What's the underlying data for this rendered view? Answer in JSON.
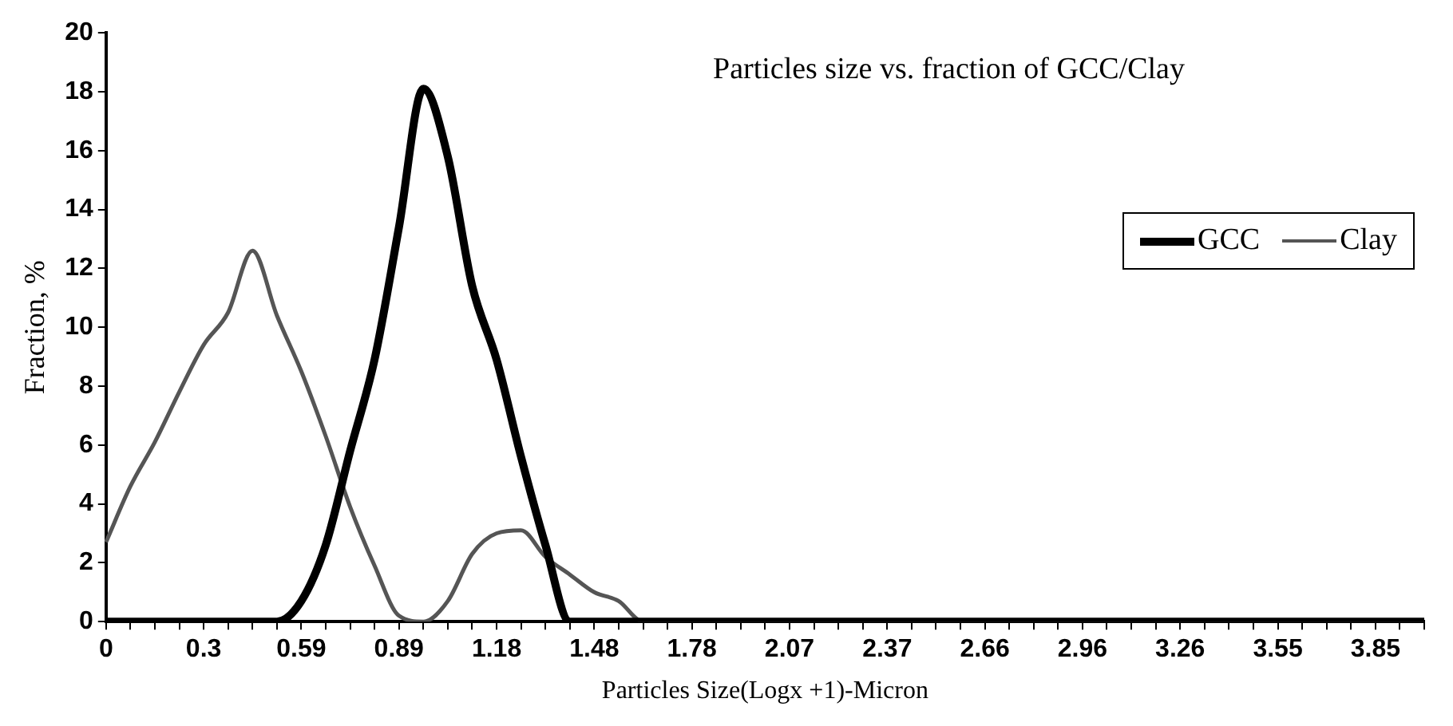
{
  "chart_data": {
    "type": "line",
    "title": "Particles size vs. fraction of GCC/Clay",
    "xlabel": "Particles Size(Logx +1)-Micron",
    "ylabel": "Fraction, %",
    "categories": [
      "0",
      null,
      null,
      null,
      "0.3",
      null,
      null,
      null,
      "0.59",
      null,
      null,
      null,
      "0.89",
      null,
      null,
      null,
      "1.18",
      null,
      null,
      null,
      "1.48",
      null,
      null,
      null,
      "1.78",
      null,
      null,
      null,
      "2.07",
      null,
      null,
      null,
      "2.37",
      null,
      null,
      null,
      "2.66",
      null,
      null,
      null,
      "2.96",
      null,
      null,
      null,
      "3.26",
      null,
      null,
      null,
      "3.55",
      null,
      null,
      null,
      "3.85",
      null,
      null
    ],
    "series": [
      {
        "name": "GCC",
        "color": "#000000",
        "values": [
          0,
          0,
          0,
          0,
          0,
          0,
          0,
          0,
          0.7,
          2.6,
          5.8,
          8.9,
          13.4,
          18.1,
          15.8,
          11.4,
          8.9,
          5.6,
          2.6,
          0,
          0,
          0,
          0,
          0,
          0,
          0,
          0,
          0,
          0,
          0,
          0,
          0,
          0,
          0,
          0,
          0,
          0,
          0,
          0,
          0,
          0,
          0,
          0,
          0,
          0,
          0,
          0,
          0,
          0,
          0,
          0,
          0,
          0,
          0,
          0
        ]
      },
      {
        "name": "Clay",
        "color": "#555555",
        "values": [
          2.7,
          4.6,
          6.1,
          7.8,
          9.4,
          10.5,
          12.6,
          10.4,
          8.5,
          6.3,
          3.9,
          1.9,
          0.2,
          0,
          0.7,
          2.3,
          3.0,
          3.1,
          2.2,
          1.6,
          1.0,
          0.7,
          0,
          0,
          0,
          0,
          0,
          0,
          0,
          0,
          0,
          0,
          0,
          0,
          0,
          0,
          0,
          0,
          0,
          0,
          0,
          0,
          0,
          0,
          0,
          0,
          0,
          0,
          0,
          0,
          0,
          0,
          0,
          0,
          0
        ]
      }
    ],
    "ylim": [
      0,
      20
    ],
    "yticks": [
      0,
      2,
      4,
      6,
      8,
      10,
      12,
      14,
      16,
      18,
      20
    ],
    "grid": false,
    "legend": "top right",
    "marker": "none"
  }
}
